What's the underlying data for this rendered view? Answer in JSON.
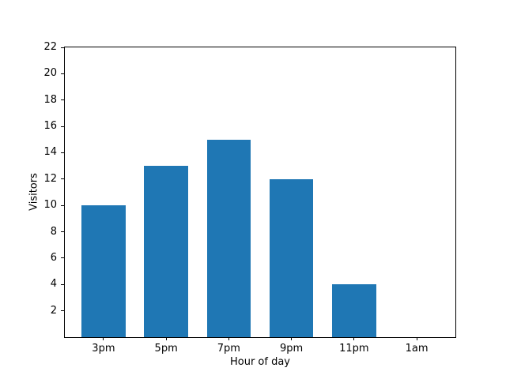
{
  "chart_data": {
    "type": "bar",
    "categories": [
      "3pm",
      "5pm",
      "7pm",
      "9pm",
      "11pm",
      "1am"
    ],
    "values": [
      10,
      13,
      15,
      12,
      4,
      0
    ],
    "xlabel": "Hour of day",
    "ylabel": "Visitors",
    "ylim": [
      0,
      22
    ],
    "yticks": [
      2,
      4,
      6,
      8,
      10,
      12,
      14,
      16,
      18,
      20,
      22
    ],
    "bar_color": "#1f77b4",
    "spine_color": "#000000",
    "background_color": "#ffffff",
    "grid": false,
    "legend": null
  }
}
